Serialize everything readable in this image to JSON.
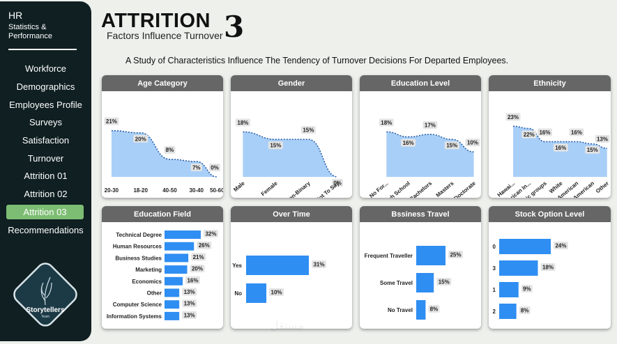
{
  "sidebar": {
    "brand_title": "HR",
    "brand_line1": "Statistics &",
    "brand_line2": "Performance",
    "items": [
      {
        "label": "Workforce"
      },
      {
        "label": "Demographics"
      },
      {
        "label": "Employees Profile"
      },
      {
        "label": "Surveys"
      },
      {
        "label": "Satisfaction"
      },
      {
        "label": "Turnover"
      },
      {
        "label": "Attrition 01"
      },
      {
        "label": "Attrition 02"
      },
      {
        "label": "Attrition 03"
      },
      {
        "label": "Recommendations"
      }
    ],
    "active_item": "Attrition 03",
    "logo_text": "Storytellers",
    "logo_sub": "Team"
  },
  "header": {
    "title": "ATTRITION",
    "subtitle": "Factors Influence Turnover",
    "page_number": "3",
    "intro": "A Study of Characteristics Influence The Tendency of Turnover Decisions For Departed Employees."
  },
  "colors": {
    "accent_blue": "#2f8ef2",
    "area_fill": "#a8cff7",
    "area_line": "#2b5fa8",
    "header_gray": "#666666",
    "active_nav": "#7dbd73",
    "label_bg": "#e4e4e4"
  },
  "chart_data": [
    {
      "type": "area",
      "title": "Age Category",
      "categories": [
        "20-30",
        "18-20",
        "40-50",
        "30-40",
        "50-60"
      ],
      "values": [
        21,
        20,
        8,
        7,
        0
      ],
      "labels": [
        "21%",
        "20%",
        "8%",
        "7%",
        "0%"
      ]
    },
    {
      "type": "area",
      "title": "Gender",
      "categories": [
        "Male",
        "Female",
        "Non-Binary",
        "Prefer Not To Say"
      ],
      "values": [
        18,
        15,
        15,
        0
      ],
      "labels": [
        "18%",
        "15%",
        "15%",
        "0%"
      ]
    },
    {
      "type": "area",
      "title": "Education Level",
      "categories": [
        "No For...",
        "High School",
        "Bachelors",
        "Masters",
        "Doctorate"
      ],
      "values": [
        18,
        16,
        17,
        15,
        10
      ],
      "labels": [
        "18%",
        "16%",
        "17%",
        "15%",
        "10%"
      ]
    },
    {
      "type": "area",
      "title": "Ethnicity",
      "categories": [
        "Hawai...",
        "American In...",
        "Mixed Ethnic groups",
        "White",
        "Asian / Asian American",
        "Black / African American",
        "Other"
      ],
      "values": [
        23,
        22,
        16,
        16,
        16,
        15,
        13
      ],
      "labels": [
        "23%",
        "22%",
        "16%",
        "16%",
        "16%",
        "15%",
        "13%"
      ]
    },
    {
      "type": "bar",
      "title": "Education Field",
      "categories": [
        "Technical Degree",
        "Human Resources",
        "Business Studies",
        "Marketing",
        "Economics",
        "Other",
        "Computer Science",
        "Information Systems"
      ],
      "values": [
        32,
        26,
        21,
        20,
        16,
        13,
        13,
        13
      ],
      "labels": [
        "32%",
        "26%",
        "21%",
        "20%",
        "16%",
        "13%",
        "13%",
        "13%"
      ]
    },
    {
      "type": "bar",
      "title": "Over Time",
      "categories": [
        "Yes",
        "No"
      ],
      "values": [
        31,
        10
      ],
      "labels": [
        "31%",
        "10%"
      ]
    },
    {
      "type": "bar",
      "title": "Bssiness Travel",
      "categories": [
        "Frequent Traveller",
        "Some Travel",
        "No Travel"
      ],
      "values": [
        25,
        15,
        8
      ],
      "labels": [
        "25%",
        "15%",
        "8%"
      ]
    },
    {
      "type": "bar",
      "title": "Stock Option Level",
      "categories": [
        "0",
        "3",
        "1",
        "2"
      ],
      "values": [
        24,
        18,
        9,
        8
      ],
      "labels": [
        "24%",
        "18%",
        "9%",
        "8%"
      ]
    }
  ],
  "watermark": "مستقل"
}
